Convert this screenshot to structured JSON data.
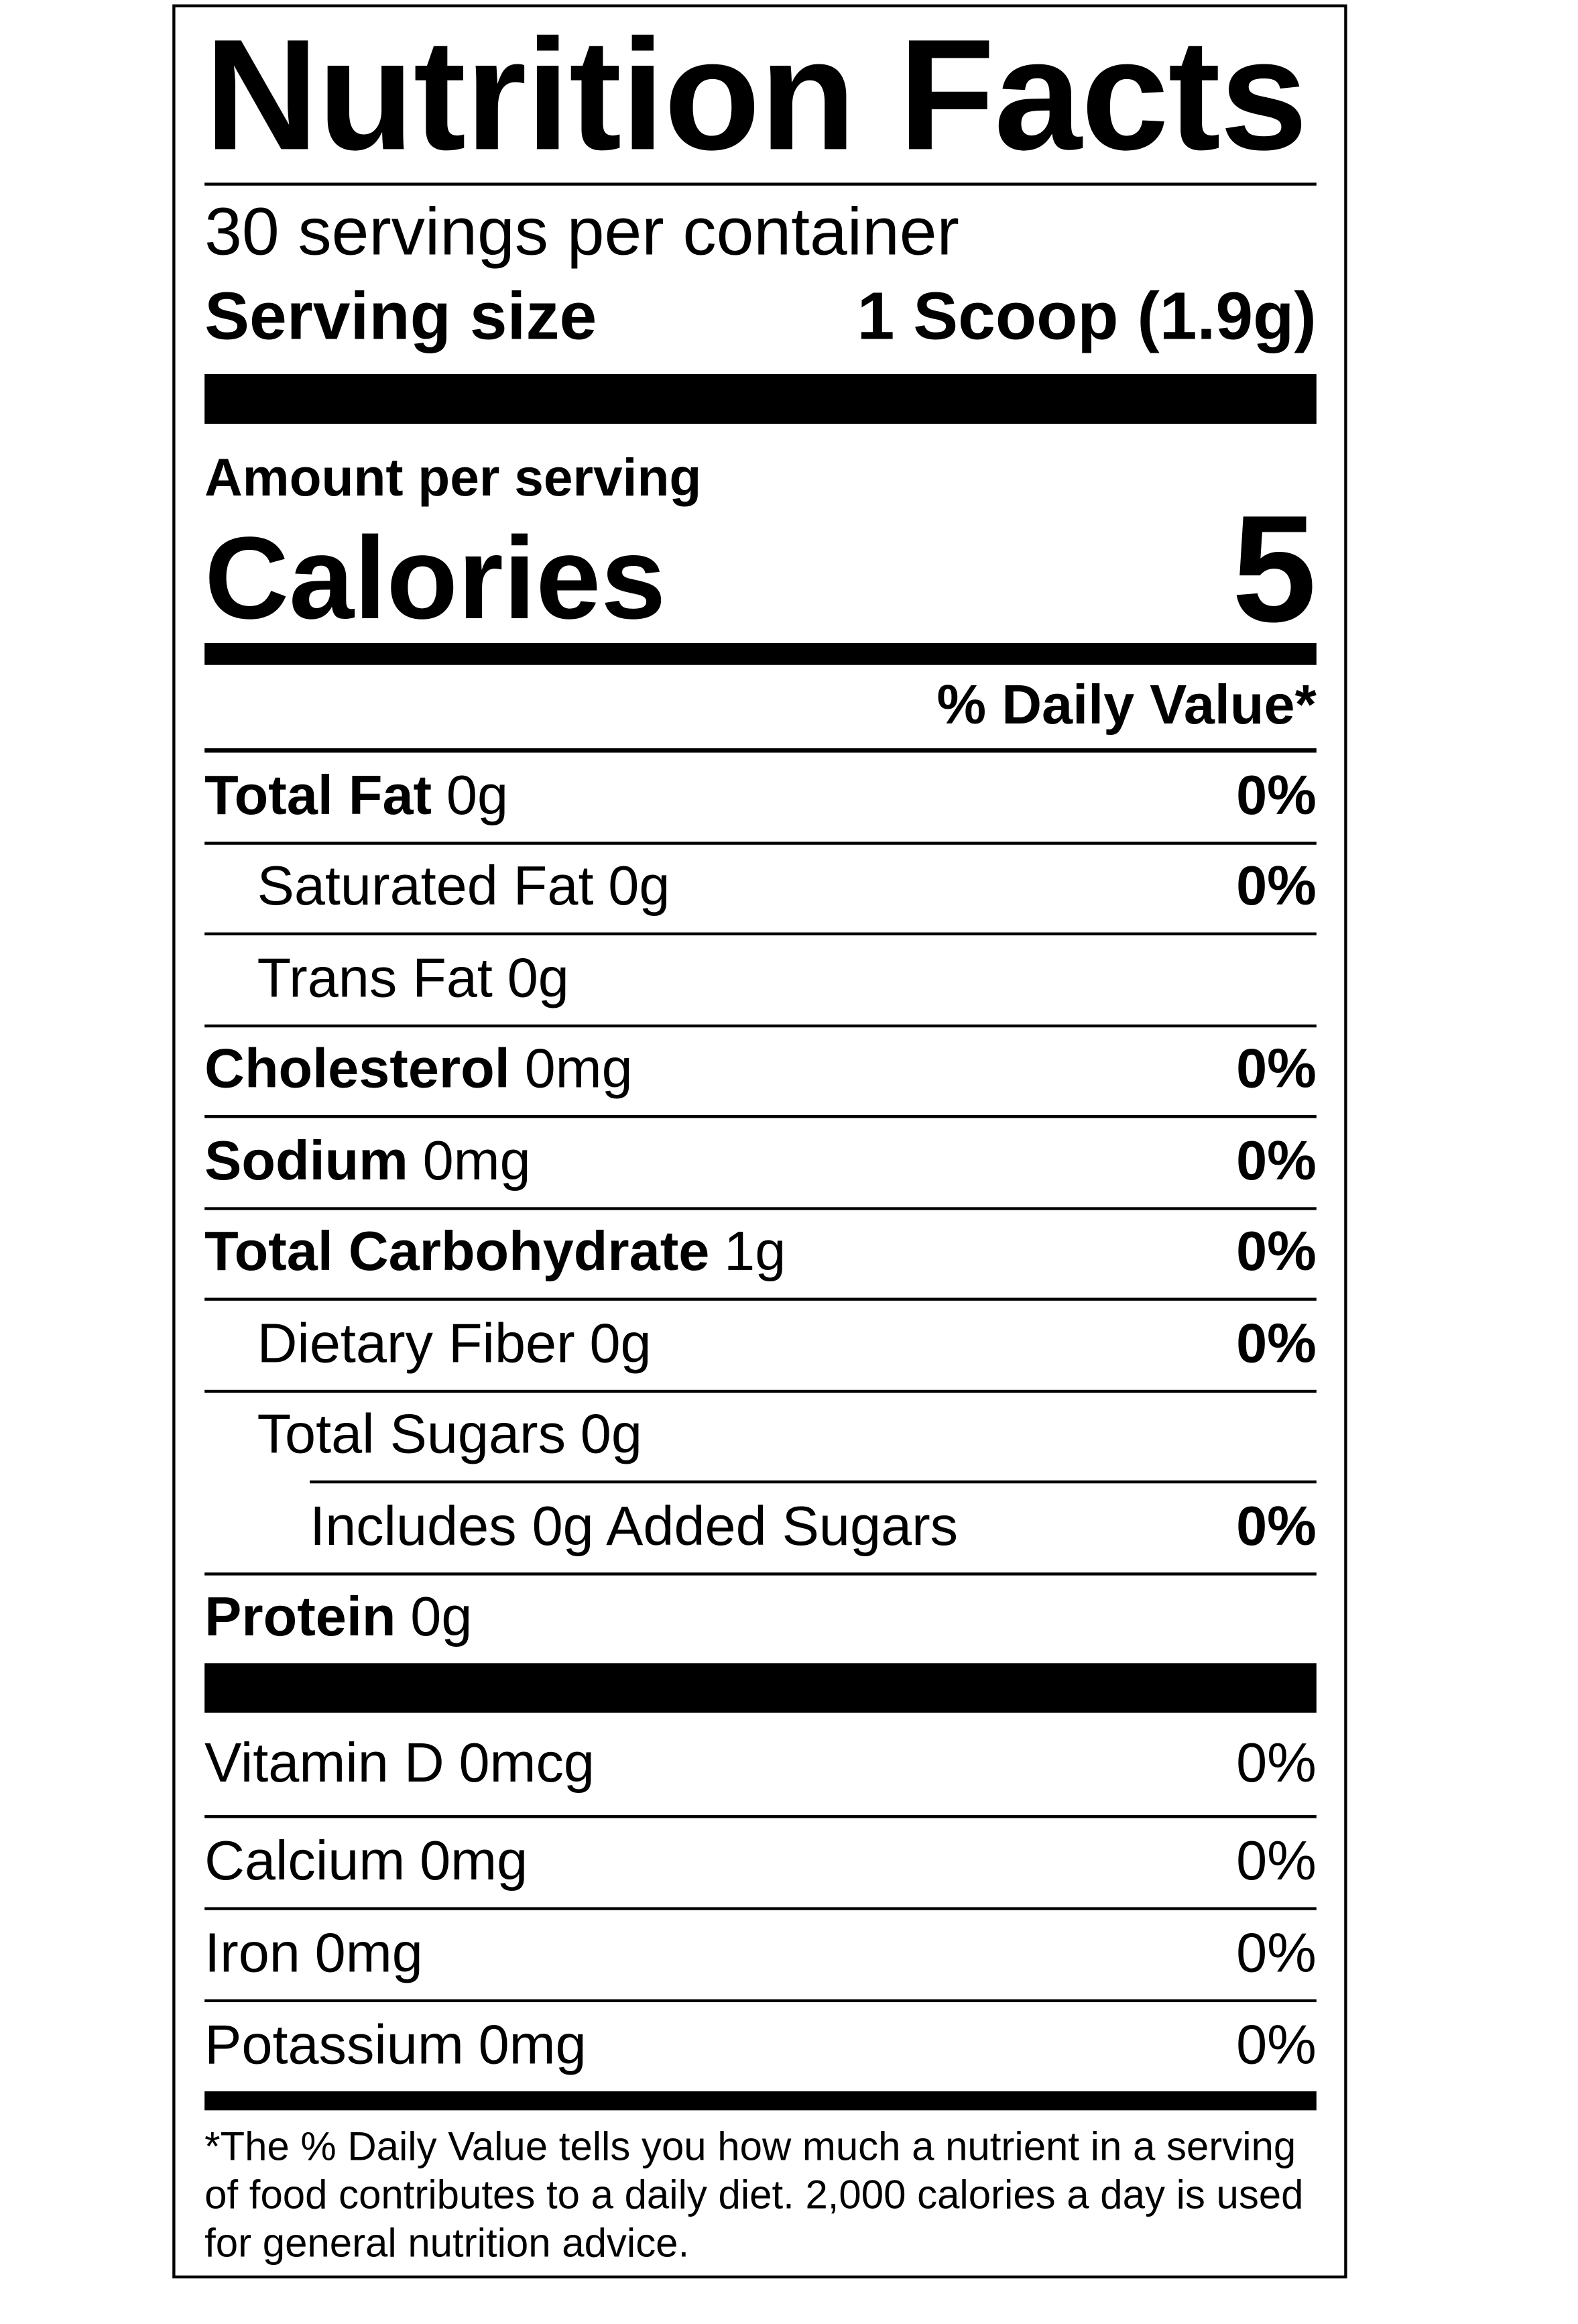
{
  "title": "Nutrition Facts",
  "servings": "30 servings per container",
  "serving_size": {
    "label": "Serving size",
    "value": "1 Scoop (1.9g)"
  },
  "amount_per_serving": "Amount per serving",
  "calories": {
    "label": "Calories",
    "value": 5
  },
  "daily_value_header": "% Daily Value*",
  "nutrients": [
    {
      "name": "Total Fat",
      "amount": "0g",
      "dv": "0%",
      "sub": [
        {
          "name": "Saturated Fat",
          "amount": "0g",
          "dv": "0%"
        },
        {
          "name": "Trans Fat",
          "amount": "0g"
        }
      ]
    },
    {
      "name": "Cholesterol",
      "amount": "0mg",
      "dv": "0%"
    },
    {
      "name": "Sodium",
      "amount": "0mg",
      "dv": "0%"
    },
    {
      "name": "Total Carbohydrate",
      "amount": "1g",
      "dv": "0%",
      "sub": [
        {
          "name": "Dietary Fiber",
          "amount": "0g",
          "dv": "0%"
        },
        {
          "name": "Total Sugars",
          "amount": "0g",
          "sub": [
            {
              "name": "Includes 0g Added Sugars",
              "dv": "0%"
            }
          ]
        }
      ]
    },
    {
      "name": "Protein",
      "amount": "0g"
    }
  ],
  "vitamins": [
    {
      "name": "Vitamin D",
      "amount": "0mcg",
      "dv": "0%"
    },
    {
      "name": "Calcium",
      "amount": "0mg",
      "dv": "0%"
    },
    {
      "name": "Iron",
      "amount": "0mg",
      "dv": "0%"
    },
    {
      "name": "Potassium",
      "amount": "0mg",
      "dv": "0%"
    }
  ],
  "footnote": "*The % Daily Value tells you how much a nutrient in a serving of food contributes to a daily diet. 2,000 calories a day is used for general nutrition advice."
}
